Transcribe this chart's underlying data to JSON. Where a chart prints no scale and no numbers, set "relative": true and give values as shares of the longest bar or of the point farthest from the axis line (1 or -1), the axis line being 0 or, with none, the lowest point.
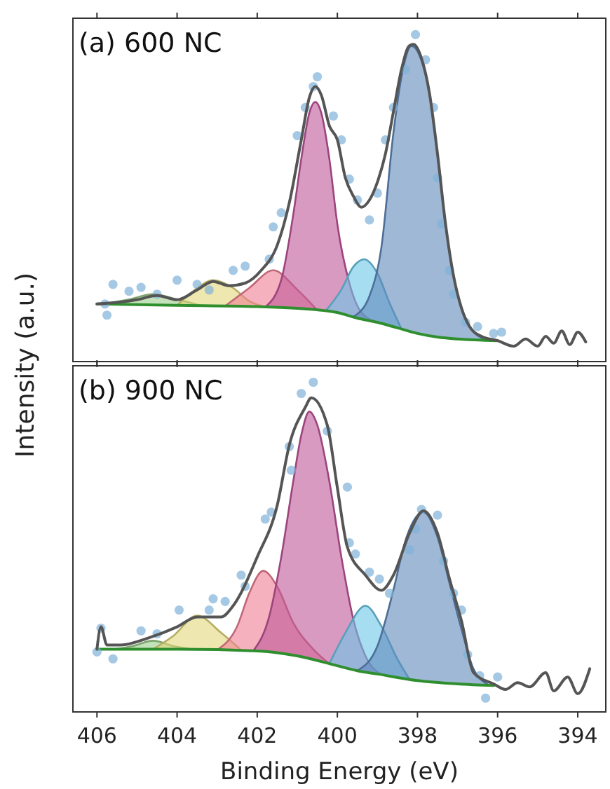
{
  "chart_data": [
    {
      "type": "line",
      "title": "(a) 600 NC",
      "ylabel": "Intensity (a.u.)",
      "xlim": [
        406.6,
        393.3
      ],
      "xticks": [
        406,
        404,
        402,
        400,
        398,
        396,
        394
      ],
      "tick_labels": false,
      "relative": true,
      "series": [
        {
          "type": "area",
          "color": "#9cce8a",
          "x": [
            405.8,
            405.2,
            404.6,
            404.0,
            403.4
          ],
          "values": [
            0.176,
            0.19,
            0.206,
            0.19,
            0.171
          ]
        },
        {
          "type": "area",
          "color": "#e2d77a",
          "x": [
            404.0,
            403.6,
            403.1,
            402.6,
            402.2,
            401.8
          ],
          "values": [
            0.172,
            0.215,
            0.249,
            0.225,
            0.185,
            0.167
          ]
        },
        {
          "type": "area",
          "color": "#ee7f93",
          "x": [
            402.8,
            402.2,
            401.6,
            401.0,
            400.5
          ],
          "values": [
            0.17,
            0.225,
            0.279,
            0.22,
            0.157
          ]
        },
        {
          "type": "area",
          "color": "#c0569a",
          "x": [
            401.8,
            401.4,
            401.1,
            400.9,
            400.7,
            400.55,
            400.4,
            400.2,
            400.0,
            399.7,
            399.4,
            399.0
          ],
          "values": [
            0.167,
            0.25,
            0.45,
            0.62,
            0.76,
            0.794,
            0.76,
            0.62,
            0.42,
            0.24,
            0.15,
            0.12
          ]
        },
        {
          "type": "area",
          "color": "#6cc6e8",
          "x": [
            400.3,
            399.9,
            399.6,
            399.33,
            399.0,
            398.7,
            398.4
          ],
          "values": [
            0.154,
            0.22,
            0.29,
            0.313,
            0.27,
            0.18,
            0.1
          ]
        },
        {
          "type": "area",
          "color": "#5f88bb",
          "x": [
            399.6,
            399.2,
            398.9,
            398.6,
            398.4,
            398.15,
            397.9,
            397.7,
            397.5,
            397.3,
            397.1,
            396.9,
            396.6,
            396.2
          ],
          "values": [
            0.137,
            0.2,
            0.35,
            0.7,
            0.87,
            0.965,
            0.92,
            0.82,
            0.63,
            0.42,
            0.26,
            0.16,
            0.09,
            0.065
          ]
        },
        {
          "color": "#2f8f2f",
          "x": [
            406,
            404,
            402,
            401,
            400,
            399.5,
            399,
            398.5,
            398,
            397.5,
            397,
            396
          ],
          "values": [
            0.176,
            0.172,
            0.168,
            0.163,
            0.15,
            0.133,
            0.12,
            0.103,
            0.086,
            0.075,
            0.069,
            0.064
          ]
        },
        {
          "type": "scatter",
          "color": "#7fb2d9",
          "marker": "circle",
          "x": [
            405.8,
            405.75,
            405.6,
            405.2,
            404.9,
            404.5,
            404.0,
            403.5,
            403.2,
            402.6,
            402.3,
            401.7,
            401.6,
            401.4,
            401.0,
            400.8,
            400.6,
            400.5,
            400.1,
            399.9,
            399.7,
            399.5,
            399.2,
            399.0,
            398.8,
            398.6,
            398.3,
            398.05,
            397.8,
            397.6,
            397.5,
            397.4,
            397.2,
            397.1,
            396.8,
            396.5,
            396.1,
            395.9
          ],
          "values": [
            0.176,
            0.142,
            0.236,
            0.215,
            0.227,
            0.206,
            0.249,
            0.236,
            0.219,
            0.279,
            0.292,
            0.313,
            0.412,
            0.455,
            0.691,
            0.777,
            0.841,
            0.871,
            0.751,
            0.678,
            0.558,
            0.494,
            0.433,
            0.515,
            0.678,
            0.777,
            0.893,
            1.0,
            0.923,
            0.777,
            0.562,
            0.421,
            0.279,
            0.206,
            0.12,
            0.107,
            0.086,
            0.09
          ]
        },
        {
          "type": "line",
          "color": "#555555",
          "x": [
            406.0,
            405.0,
            404.5,
            404.0,
            403.5,
            403.1,
            402.7,
            402.3,
            401.9,
            401.5,
            401.2,
            400.9,
            400.7,
            400.55,
            400.4,
            400.2,
            400.0,
            399.8,
            399.6,
            399.4,
            399.2,
            399.0,
            398.8,
            398.6,
            398.4,
            398.2,
            398.1,
            397.9,
            397.7,
            397.5,
            397.3,
            397.1,
            396.9,
            396.7,
            396.4,
            396.0,
            395.6,
            395.3,
            395.0,
            394.8,
            394.6,
            394.4,
            394.2,
            394.0,
            393.8
          ],
          "values": [
            0.176,
            0.189,
            0.202,
            0.189,
            0.219,
            0.245,
            0.232,
            0.24,
            0.279,
            0.356,
            0.485,
            0.678,
            0.807,
            0.841,
            0.815,
            0.721,
            0.678,
            0.562,
            0.506,
            0.472,
            0.494,
            0.549,
            0.635,
            0.764,
            0.893,
            0.966,
            0.97,
            0.927,
            0.82,
            0.635,
            0.421,
            0.262,
            0.163,
            0.107,
            0.077,
            0.064,
            0.047,
            0.069,
            0.047,
            0.077,
            0.056,
            0.094,
            0.052,
            0.09,
            0.06
          ]
        }
      ]
    },
    {
      "type": "line",
      "title": "(b) 900 NC",
      "xlabel": "Binding Energy (eV)",
      "xlim": [
        406.6,
        393.3
      ],
      "xticks": [
        406,
        404,
        402,
        400,
        398,
        396,
        394
      ],
      "tick_labels": "x",
      "relative": true,
      "series": [
        {
          "type": "area",
          "color": "#9cce8a",
          "x": [
            405.6,
            405.1,
            404.6,
            404.1,
            403.6
          ],
          "values": [
            0.19,
            0.2,
            0.216,
            0.2,
            0.19
          ]
        },
        {
          "type": "area",
          "color": "#e2d77a",
          "x": [
            404.6,
            404.1,
            403.5,
            402.9,
            402.4
          ],
          "values": [
            0.19,
            0.23,
            0.292,
            0.24,
            0.187
          ]
        },
        {
          "type": "area",
          "color": "#ee7f93",
          "x": [
            403.0,
            402.5,
            402.2,
            401.85,
            401.5,
            401.1,
            400.6,
            400.2
          ],
          "values": [
            0.188,
            0.26,
            0.36,
            0.428,
            0.38,
            0.27,
            0.19,
            0.146
          ]
        },
        {
          "type": "area",
          "color": "#c0569a",
          "x": [
            402.1,
            401.7,
            401.4,
            401.1,
            400.9,
            400.7,
            400.5,
            400.2,
            399.9,
            399.6,
            399.3,
            398.9
          ],
          "values": [
            0.185,
            0.29,
            0.47,
            0.7,
            0.84,
            0.911,
            0.87,
            0.7,
            0.47,
            0.28,
            0.17,
            0.113
          ]
        },
        {
          "type": "area",
          "color": "#6cc6e8",
          "x": [
            400.2,
            399.8,
            399.3,
            398.9,
            398.5,
            398.2
          ],
          "values": [
            0.146,
            0.24,
            0.322,
            0.26,
            0.16,
            0.099
          ]
        },
        {
          "type": "area",
          "color": "#5f88bb",
          "x": [
            399.5,
            399.0,
            398.6,
            398.3,
            397.85,
            397.5,
            397.2,
            396.9,
            396.6,
            396.2
          ],
          "values": [
            0.125,
            0.2,
            0.37,
            0.52,
            0.606,
            0.53,
            0.39,
            0.25,
            0.13,
            0.081
          ]
        },
        {
          "color": "#2f8f2f",
          "x": [
            406,
            404,
            402,
            401,
            400,
            399.5,
            399,
            398,
            397,
            396.1
          ],
          "values": [
            0.19,
            0.19,
            0.185,
            0.17,
            0.14,
            0.125,
            0.115,
            0.095,
            0.085,
            0.08
          ]
        },
        {
          "type": "scatter",
          "color": "#7fb2d9",
          "marker": "circle",
          "x": [
            406.0,
            405.9,
            405.6,
            404.9,
            404.5,
            403.95,
            403.2,
            403.1,
            402.8,
            402.4,
            402.3,
            401.8,
            401.65,
            401.2,
            401.15,
            400.9,
            400.6,
            400.25,
            399.75,
            399.7,
            399.55,
            399.2,
            398.95,
            398.7,
            398.2,
            398.05,
            397.9,
            397.5,
            397.35,
            397.1,
            396.9,
            396.75,
            396.45,
            396.3,
            396.0
          ],
          "values": [
            0.182,
            0.254,
            0.161,
            0.246,
            0.237,
            0.309,
            0.309,
            0.343,
            0.335,
            0.415,
            0.381,
            0.585,
            0.606,
            0.805,
            0.733,
            0.966,
            1.0,
            0.852,
            0.682,
            0.513,
            0.479,
            0.424,
            0.403,
            0.36,
            0.492,
            0.555,
            0.614,
            0.597,
            0.458,
            0.36,
            0.309,
            0.174,
            0.11,
            0.042,
            0.106
          ]
        },
        {
          "type": "line",
          "color": "#555555",
          "x": [
            406.0,
            405.9,
            405.75,
            405.4,
            404.7,
            404.0,
            403.5,
            402.9,
            402.6,
            402.0,
            401.5,
            401.2,
            400.8,
            400.65,
            400.25,
            400.0,
            399.75,
            399.3,
            398.9,
            398.6,
            398.2,
            397.85,
            397.5,
            397.2,
            396.9,
            396.6,
            396.1,
            395.8,
            395.5,
            395.2,
            394.8,
            394.6,
            394.25,
            394.0,
            393.7
          ],
          "values": [
            0.19,
            0.258,
            0.203,
            0.203,
            0.225,
            0.258,
            0.288,
            0.288,
            0.322,
            0.47,
            0.627,
            0.809,
            0.924,
            0.953,
            0.869,
            0.68,
            0.5,
            0.415,
            0.369,
            0.415,
            0.542,
            0.61,
            0.542,
            0.403,
            0.275,
            0.119,
            0.085,
            0.068,
            0.089,
            0.076,
            0.119,
            0.064,
            0.106,
            0.055,
            0.131
          ]
        }
      ]
    }
  ]
}
